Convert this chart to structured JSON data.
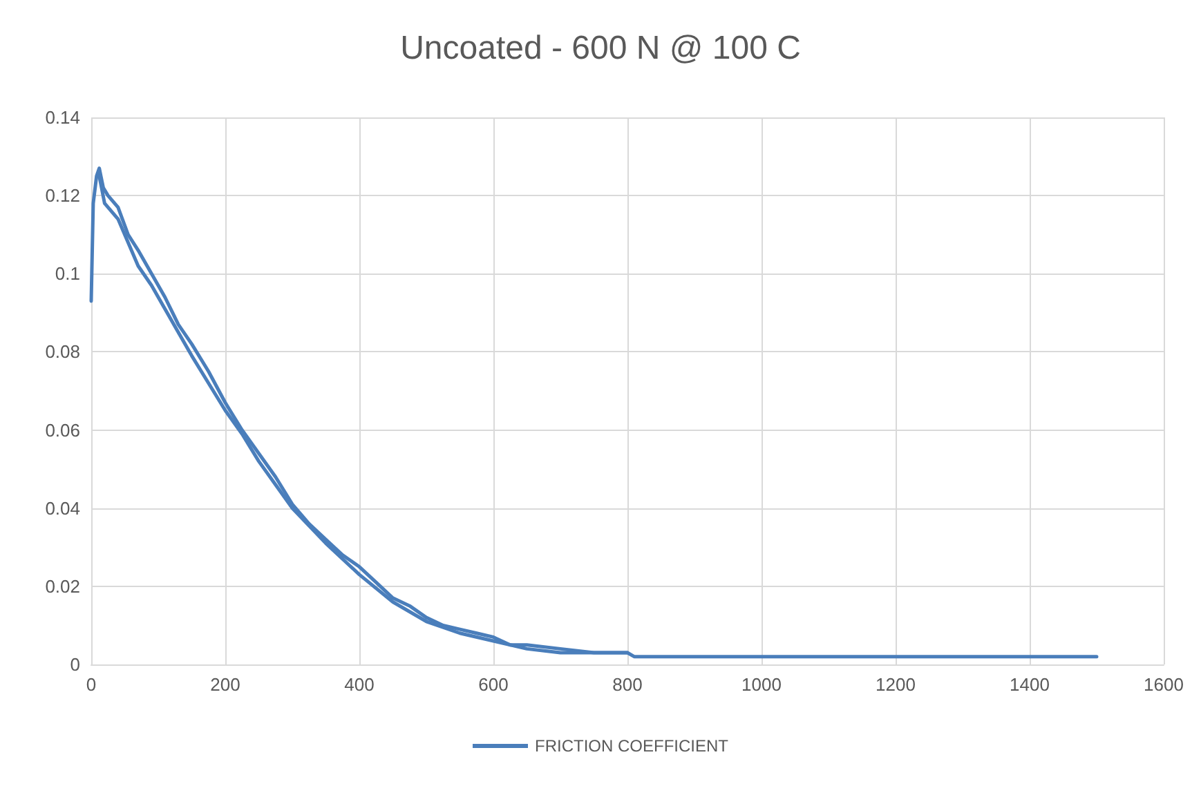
{
  "chart_data": {
    "type": "line",
    "title": "Uncoated - 600 N @ 100 C",
    "series": [
      {
        "name": "FRICTION COEFFICIENT",
        "color": "#4a7ebb",
        "x": [
          0,
          3,
          8,
          12,
          18,
          25,
          40,
          55,
          70,
          90,
          110,
          130,
          150,
          175,
          200,
          225,
          250,
          275,
          300,
          325,
          350,
          375,
          400,
          425,
          450,
          475,
          500,
          525,
          550,
          575,
          600,
          625,
          650,
          700,
          750,
          800,
          810,
          1000,
          1200,
          1500
        ],
        "values": [
          0.093,
          0.118,
          0.125,
          0.127,
          0.122,
          0.12,
          0.117,
          0.11,
          0.106,
          0.1,
          0.094,
          0.087,
          0.082,
          0.075,
          0.067,
          0.06,
          0.054,
          0.048,
          0.041,
          0.036,
          0.032,
          0.028,
          0.025,
          0.021,
          0.017,
          0.015,
          0.012,
          0.01,
          0.009,
          0.008,
          0.007,
          0.005,
          0.005,
          0.004,
          0.003,
          0.003,
          0.002,
          0.002,
          0.002,
          0.002
        ]
      },
      {
        "color": "#4a7ebb",
        "x": [
          12,
          20,
          40,
          55,
          70,
          90,
          110,
          130,
          150,
          175,
          200,
          225,
          250,
          275,
          300,
          350,
          400,
          450,
          500,
          550,
          600,
          650,
          700,
          800
        ],
        "values": [
          0.125,
          0.118,
          0.114,
          0.108,
          0.102,
          0.097,
          0.091,
          0.085,
          0.079,
          0.072,
          0.065,
          0.059,
          0.052,
          0.046,
          0.04,
          0.031,
          0.023,
          0.016,
          0.011,
          0.008,
          0.006,
          0.004,
          0.003,
          0.003
        ]
      }
    ],
    "xlim": [
      0,
      1600
    ],
    "xticks": [
      0,
      200,
      400,
      600,
      800,
      1000,
      1200,
      1400,
      1600
    ],
    "ylim": [
      0,
      0.14
    ],
    "yticks": [
      0,
      0.02,
      0.04,
      0.06,
      0.08,
      0.1,
      0.12,
      0.14
    ],
    "grid": true,
    "legend": "bottom",
    "marker": "none",
    "line_style": "solid"
  }
}
